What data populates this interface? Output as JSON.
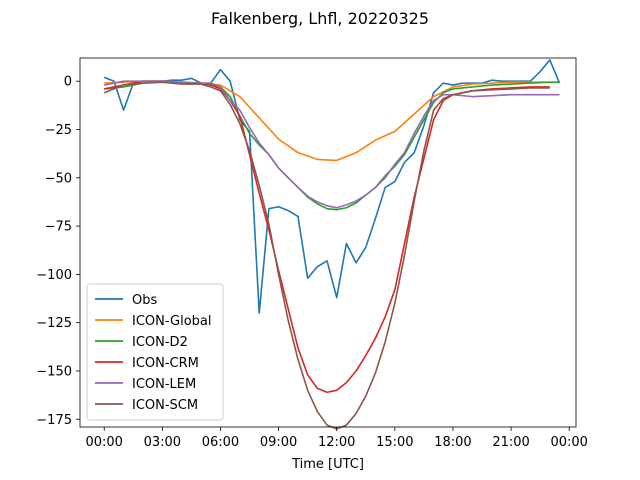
{
  "chart_data": {
    "type": "line",
    "title": "Falkenberg, Lhfl, 20220325",
    "xlabel": "Time [UTC]",
    "ylabel": "",
    "xlim": [
      -1.25,
      24.35
    ],
    "ylim": [
      -179,
      12
    ],
    "x_ticks": [
      0,
      3,
      6,
      9,
      12,
      15,
      18,
      21,
      24
    ],
    "x_tick_labels": [
      "00:00",
      "03:00",
      "06:00",
      "09:00",
      "12:00",
      "15:00",
      "18:00",
      "21:00",
      "00:00"
    ],
    "y_ticks": [
      0,
      -25,
      -50,
      -75,
      -100,
      -125,
      -150,
      -175
    ],
    "y_tick_labels": [
      "0",
      "−25",
      "−50",
      "−75",
      "−100",
      "−125",
      "−150",
      "−175"
    ],
    "legend_position": "lower-left",
    "series": [
      {
        "name": "Obs",
        "color": "#1f77b4",
        "x": [
          0,
          0.5,
          1,
          1.5,
          2,
          2.5,
          3,
          3.5,
          4,
          4.5,
          5,
          5.5,
          6,
          6.5,
          7,
          7.5,
          8,
          8.5,
          9,
          9.5,
          10,
          10.5,
          11,
          11.5,
          12,
          12.5,
          13,
          13.5,
          14,
          14.5,
          15,
          15.5,
          16,
          16.5,
          17,
          17.5,
          18,
          18.5,
          19,
          19.5,
          20,
          20.5,
          21,
          21.5,
          22,
          22.5,
          23,
          23.5
        ],
        "values": [
          2,
          0,
          -15,
          -1,
          0,
          0,
          0,
          0.5,
          0.5,
          1.5,
          -1,
          -1,
          6,
          0,
          -20,
          -26,
          -120,
          -66,
          -65,
          -67,
          -70,
          -102,
          -96,
          -93,
          -112,
          -84,
          -94,
          -86,
          -71,
          -55,
          -52,
          -42,
          -37,
          -23,
          -6,
          -1,
          -2,
          -1,
          -1,
          -1,
          0.5,
          0,
          0,
          0,
          0,
          5,
          11,
          -1
        ]
      },
      {
        "name": "ICON-Global",
        "color": "#ff7f0e",
        "x": [
          0,
          1,
          2,
          3,
          4,
          5,
          6,
          7,
          8,
          9,
          10,
          11,
          12,
          13,
          14,
          15,
          16,
          17,
          18,
          19,
          20,
          21,
          22,
          23
        ],
        "values": [
          -1,
          -0.5,
          0,
          0,
          -0.5,
          -1,
          -2,
          -8,
          -19,
          -30,
          -37,
          -40.5,
          -41,
          -37,
          -30.5,
          -26,
          -17,
          -8,
          -3,
          -1.5,
          -1,
          -0.5,
          -0.5,
          -0.5
        ]
      },
      {
        "name": "ICON-D2",
        "color": "#2ca02c",
        "x": [
          0,
          1,
          2,
          3,
          4,
          5,
          5.5,
          6,
          6.5,
          7,
          7.5,
          8,
          8.5,
          9,
          9.5,
          10,
          10.5,
          11,
          11.5,
          12,
          12.5,
          13,
          13.5,
          14,
          14.5,
          15,
          15.5,
          16,
          16.5,
          17,
          17.5,
          18,
          19,
          20,
          21,
          22,
          23,
          23.5
        ],
        "values": [
          -4,
          -3,
          -1,
          -0.5,
          -0.5,
          -1,
          -1.5,
          -3,
          -8,
          -18,
          -27,
          -33,
          -38,
          -45,
          -50,
          -55,
          -60,
          -63.5,
          -66,
          -66.5,
          -65.5,
          -63,
          -59,
          -55,
          -49,
          -44,
          -38,
          -29,
          -20,
          -11,
          -6,
          -4,
          -3,
          -2,
          -1.5,
          -1,
          -0.5,
          -0.5
        ]
      },
      {
        "name": "ICON-CRM",
        "color": "#d62728",
        "x": [
          0,
          1,
          2,
          3,
          4,
          5,
          5.5,
          6,
          6.5,
          7,
          7.5,
          8,
          8.5,
          9,
          9.5,
          10,
          10.5,
          11,
          11.5,
          12,
          12.5,
          13,
          13.5,
          14,
          14.5,
          15,
          15.5,
          16,
          16.5,
          17,
          17.5,
          18,
          19,
          20,
          21,
          22,
          23
        ],
        "values": [
          -4,
          -2,
          0,
          0,
          -1,
          -1,
          -2,
          -4,
          -10,
          -18,
          -38,
          -58,
          -77,
          -98,
          -118,
          -138,
          -152,
          -159,
          -161,
          -160,
          -156,
          -150,
          -142,
          -133,
          -122,
          -108,
          -84,
          -60,
          -40,
          -20,
          -10,
          -7,
          -5,
          -4,
          -3.5,
          -3,
          -3
        ]
      },
      {
        "name": "ICON-LEM",
        "color": "#9467bd",
        "x": [
          0,
          1,
          2,
          3,
          4,
          5,
          5.5,
          6,
          6.5,
          7,
          7.5,
          8,
          8.5,
          9,
          9.5,
          10,
          10.5,
          11,
          11.5,
          12,
          12.5,
          13,
          13.5,
          14,
          14.5,
          15,
          15.5,
          16,
          16.5,
          17,
          17.5,
          18,
          19,
          20,
          21,
          22,
          23,
          23.5
        ],
        "values": [
          -2,
          0,
          0,
          0,
          -1,
          -1,
          -1,
          -3,
          -10,
          -15,
          -24,
          -32,
          -38,
          -45,
          -50,
          -55,
          -59.5,
          -62.5,
          -64.5,
          -65.5,
          -64,
          -62,
          -59,
          -55,
          -50,
          -43,
          -37,
          -27,
          -18,
          -10,
          -7,
          -7,
          -8,
          -7.5,
          -7,
          -7,
          -7,
          -7
        ]
      },
      {
        "name": "ICON-SCM",
        "color": "#8c564b",
        "x": [
          0,
          1,
          2,
          3,
          4,
          5,
          5.5,
          6,
          6.5,
          7,
          7.5,
          8,
          8.5,
          9,
          9.5,
          10,
          10.5,
          11,
          11.5,
          12,
          12.5,
          13,
          13.5,
          14,
          14.5,
          15,
          15.5,
          16,
          16.5,
          17,
          17.5,
          18,
          19,
          20,
          21,
          22,
          23
        ],
        "values": [
          -6,
          -2,
          -1,
          -0.5,
          -1.5,
          -1.5,
          -3,
          -5,
          -12,
          -22,
          -36,
          -54,
          -74,
          -100,
          -124,
          -144,
          -160,
          -171,
          -178,
          -180,
          -178,
          -172,
          -163,
          -151,
          -135,
          -115,
          -90,
          -62,
          -36,
          -15,
          -9,
          -7,
          -5,
          -4.5,
          -4,
          -3.5,
          -3.5
        ]
      }
    ]
  }
}
